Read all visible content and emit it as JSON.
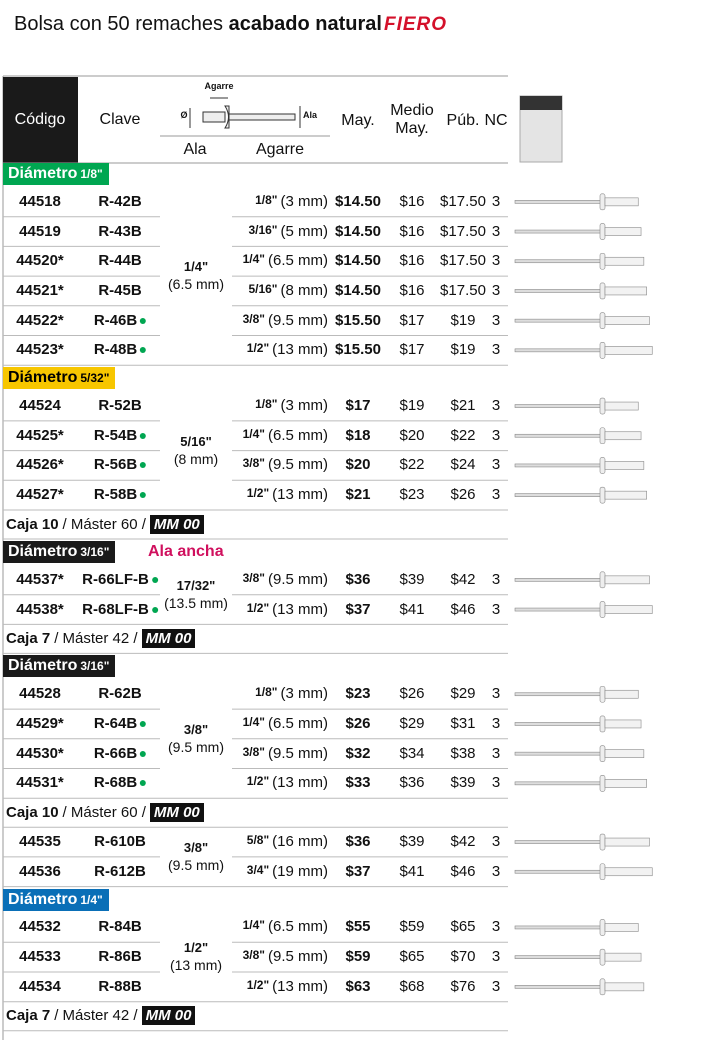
{
  "header": {
    "title": "Bolsa con 50 remaches",
    "title_bold": "acabado natural",
    "brand": "FIERO"
  },
  "columns": {
    "code": "Código",
    "clave": "Clave",
    "ala": "Ala",
    "agarre": "Agarre",
    "may": "May.",
    "medio": [
      "Medio",
      "May."
    ],
    "pub": "Púb.",
    "nc": "NC",
    "diagram": {
      "agarre": "Agarre",
      "dia": "Ø",
      "ala": "Ala"
    }
  },
  "sections": [
    {
      "label": "Diámetro",
      "size": "1/8\"",
      "color": "#00a651",
      "text_color": "#ffffff",
      "groups": [
        {
          "ala": "1/4\"",
          "ala_mm": "(6.5 mm)",
          "rows": [
            {
              "code": "44518",
              "clave": "R-42B",
              "new": false,
              "agarre": "1/8\"",
              "agarre_mm": "(3 mm)",
              "may": "$14.50",
              "medio": "$16",
              "pub": "$17.50",
              "nc": "3"
            },
            {
              "code": "44519",
              "clave": "R-43B",
              "new": false,
              "agarre": "3/16\"",
              "agarre_mm": "(5 mm)",
              "may": "$14.50",
              "medio": "$16",
              "pub": "$17.50",
              "nc": "3"
            },
            {
              "code": "44520*",
              "clave": "R-44B",
              "new": false,
              "agarre": "1/4\"",
              "agarre_mm": "(6.5 mm)",
              "may": "$14.50",
              "medio": "$16",
              "pub": "$17.50",
              "nc": "3"
            },
            {
              "code": "44521*",
              "clave": "R-45B",
              "new": false,
              "agarre": "5/16\"",
              "agarre_mm": "(8 mm)",
              "may": "$14.50",
              "medio": "$16",
              "pub": "$17.50",
              "nc": "3"
            },
            {
              "code": "44522*",
              "clave": "R-46B",
              "new": true,
              "agarre": "3/8\"",
              "agarre_mm": "(9.5 mm)",
              "may": "$15.50",
              "medio": "$17",
              "pub": "$19",
              "nc": "3"
            },
            {
              "code": "44523*",
              "clave": "R-48B",
              "new": true,
              "agarre": "1/2\"",
              "agarre_mm": "(13 mm)",
              "may": "$15.50",
              "medio": "$17",
              "pub": "$19",
              "nc": "3"
            }
          ]
        }
      ]
    },
    {
      "label": "Diámetro",
      "size": "5/32\"",
      "color": "#f7c600",
      "text_color": "#000000",
      "groups": [
        {
          "ala": "5/16\"",
          "ala_mm": "(8 mm)",
          "rows": [
            {
              "code": "44524",
              "clave": "R-52B",
              "new": false,
              "agarre": "1/8\"",
              "agarre_mm": "(3 mm)",
              "may": "$17",
              "medio": "$19",
              "pub": "$21",
              "nc": "3"
            },
            {
              "code": "44525*",
              "clave": "R-54B",
              "new": true,
              "agarre": "1/4\"",
              "agarre_mm": "(6.5 mm)",
              "may": "$18",
              "medio": "$20",
              "pub": "$22",
              "nc": "3"
            },
            {
              "code": "44526*",
              "clave": "R-56B",
              "new": true,
              "agarre": "3/8\"",
              "agarre_mm": "(9.5 mm)",
              "may": "$20",
              "medio": "$22",
              "pub": "$24",
              "nc": "3"
            },
            {
              "code": "44527*",
              "clave": "R-58B",
              "new": true,
              "agarre": "1/2\"",
              "agarre_mm": "(13 mm)",
              "may": "$21",
              "medio": "$23",
              "pub": "$26",
              "nc": "3"
            }
          ],
          "note": {
            "box": "Caja 10",
            "master": "/ Máster 60 /",
            "tag": "MM 00"
          }
        }
      ]
    },
    {
      "label": "Diámetro",
      "size": "3/16\"",
      "extra": "Ala ancha",
      "color": "#1a1a1a",
      "text_color": "#ffffff",
      "groups": [
        {
          "ala": "17/32\"",
          "ala_mm": "(13.5 mm)",
          "rows": [
            {
              "code": "44537*",
              "clave": "R-66LF-B",
              "new": true,
              "agarre": "3/8\"",
              "agarre_mm": "(9.5 mm)",
              "may": "$36",
              "medio": "$39",
              "pub": "$42",
              "nc": "3"
            },
            {
              "code": "44538*",
              "clave": "R-68LF-B",
              "new": true,
              "agarre": "1/2\"",
              "agarre_mm": "(13 mm)",
              "may": "$37",
              "medio": "$41",
              "pub": "$46",
              "nc": "3"
            }
          ],
          "note": {
            "box": "Caja 7",
            "master": "/ Máster 42 /",
            "tag": "MM 00"
          }
        }
      ]
    },
    {
      "label": "Diámetro",
      "size": "3/16\"",
      "color": "#1a1a1a",
      "text_color": "#ffffff",
      "groups": [
        {
          "ala": "3/8\"",
          "ala_mm": "(9.5 mm)",
          "rows": [
            {
              "code": "44528",
              "clave": "R-62B",
              "new": false,
              "agarre": "1/8\"",
              "agarre_mm": "(3 mm)",
              "may": "$23",
              "medio": "$26",
              "pub": "$29",
              "nc": "3"
            },
            {
              "code": "44529*",
              "clave": "R-64B",
              "new": true,
              "agarre": "1/4\"",
              "agarre_mm": "(6.5 mm)",
              "may": "$26",
              "medio": "$29",
              "pub": "$31",
              "nc": "3"
            },
            {
              "code": "44530*",
              "clave": "R-66B",
              "new": true,
              "agarre": "3/8\"",
              "agarre_mm": "(9.5 mm)",
              "may": "$32",
              "medio": "$34",
              "pub": "$38",
              "nc": "3"
            },
            {
              "code": "44531*",
              "clave": "R-68B",
              "new": true,
              "agarre": "1/2\"",
              "agarre_mm": "(13 mm)",
              "may": "$33",
              "medio": "$36",
              "pub": "$39",
              "nc": "3"
            }
          ],
          "note": {
            "box": "Caja 10",
            "master": "/ Máster 60 /",
            "tag": "MM 00"
          }
        },
        {
          "ala": "3/8\"",
          "ala_mm": "(9.5 mm)",
          "rows": [
            {
              "code": "44535",
              "clave": "R-610B",
              "new": false,
              "agarre": "5/8\"",
              "agarre_mm": "(16 mm)",
              "may": "$36",
              "medio": "$39",
              "pub": "$42",
              "nc": "3"
            },
            {
              "code": "44536",
              "clave": "R-612B",
              "new": false,
              "agarre": "3/4\"",
              "agarre_mm": "(19 mm)",
              "may": "$37",
              "medio": "$41",
              "pub": "$46",
              "nc": "3"
            }
          ]
        }
      ]
    },
    {
      "label": "Diámetro",
      "size": "1/4\"",
      "color": "#0a6fb7",
      "text_color": "#ffffff",
      "groups": [
        {
          "ala": "1/2\"",
          "ala_mm": "(13 mm)",
          "rows": [
            {
              "code": "44532",
              "clave": "R-84B",
              "new": false,
              "agarre": "1/4\"",
              "agarre_mm": "(6.5 mm)",
              "may": "$55",
              "medio": "$59",
              "pub": "$65",
              "nc": "3"
            },
            {
              "code": "44533",
              "clave": "R-86B",
              "new": false,
              "agarre": "3/8\"",
              "agarre_mm": "(9.5 mm)",
              "may": "$59",
              "medio": "$65",
              "pub": "$70",
              "nc": "3"
            },
            {
              "code": "44534",
              "clave": "R-88B",
              "new": false,
              "agarre": "1/2\"",
              "agarre_mm": "(13 mm)",
              "may": "$63",
              "medio": "$68",
              "pub": "$76",
              "nc": "3"
            }
          ],
          "note": {
            "box": "Caja 7",
            "master": "/ Máster 42 /",
            "tag": "MM 00"
          }
        }
      ]
    }
  ]
}
